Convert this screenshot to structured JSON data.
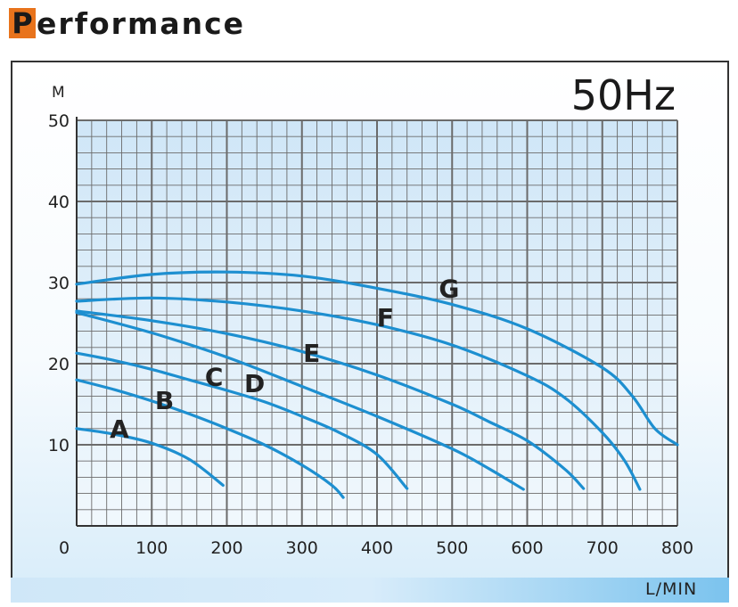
{
  "page": {
    "heading_initial": "P",
    "heading_rest": "erformance",
    "frequency": "50Hz"
  },
  "chart_data": {
    "type": "line",
    "title": "",
    "xlabel": "L/MIN",
    "ylabel": "M",
    "xlim": [
      0,
      800
    ],
    "ylim": [
      0,
      50
    ],
    "x_ticks": [
      0,
      100,
      200,
      300,
      400,
      500,
      600,
      700,
      800
    ],
    "y_ticks": [
      10,
      20,
      30,
      40,
      50
    ],
    "grid": true,
    "legend": "inline curve labels",
    "colors": {
      "curve": "#1d8fd0",
      "plot_top": "#cfe6f7",
      "plot_bottom": "#f1f8fd",
      "grid": "#6b6b6b",
      "accent": "#e8731c"
    },
    "series": [
      {
        "name": "A",
        "label_at": [
          57,
          12
        ],
        "points": [
          [
            0,
            12
          ],
          [
            50,
            11.3
          ],
          [
            100,
            10.2
          ],
          [
            150,
            8.2
          ],
          [
            195,
            5
          ]
        ]
      },
      {
        "name": "B",
        "label_at": [
          117,
          15.5
        ],
        "points": [
          [
            0,
            18
          ],
          [
            50,
            16.8
          ],
          [
            100,
            15.4
          ],
          [
            150,
            13.8
          ],
          [
            200,
            12
          ],
          [
            250,
            10
          ],
          [
            300,
            7.5
          ],
          [
            340,
            5
          ],
          [
            355,
            3.5
          ]
        ]
      },
      {
        "name": "C",
        "label_at": [
          183,
          18.4
        ],
        "points": [
          [
            0,
            21.3
          ],
          [
            50,
            20.4
          ],
          [
            100,
            19.3
          ],
          [
            150,
            18
          ],
          [
            200,
            16.7
          ],
          [
            250,
            15.3
          ],
          [
            300,
            13.5
          ],
          [
            350,
            11.5
          ],
          [
            400,
            8.8
          ],
          [
            440,
            4.6
          ]
        ]
      },
      {
        "name": "D",
        "label_at": [
          237,
          17.6
        ],
        "points": [
          [
            0,
            26.3
          ],
          [
            100,
            23.8
          ],
          [
            200,
            20.8
          ],
          [
            300,
            17.2
          ],
          [
            400,
            13.5
          ],
          [
            500,
            9.5
          ],
          [
            550,
            7
          ],
          [
            595,
            4.5
          ]
        ]
      },
      {
        "name": "E",
        "label_at": [
          313,
          21.3
        ],
        "points": [
          [
            0,
            26.5
          ],
          [
            100,
            25.3
          ],
          [
            200,
            23.7
          ],
          [
            300,
            21.5
          ],
          [
            400,
            18.6
          ],
          [
            500,
            15
          ],
          [
            550,
            12.8
          ],
          [
            600,
            10.5
          ],
          [
            650,
            7
          ],
          [
            675,
            4.6
          ]
        ]
      },
      {
        "name": "F",
        "label_at": [
          411,
          25.7
        ],
        "points": [
          [
            0,
            27.7
          ],
          [
            100,
            28.1
          ],
          [
            200,
            27.6
          ],
          [
            300,
            26.5
          ],
          [
            400,
            24.8
          ],
          [
            500,
            22.3
          ],
          [
            600,
            18.5
          ],
          [
            650,
            15.8
          ],
          [
            700,
            11.5
          ],
          [
            730,
            8
          ],
          [
            750,
            4.5
          ]
        ]
      },
      {
        "name": "G",
        "label_at": [
          496,
          29.3
        ],
        "points": [
          [
            0,
            29.8
          ],
          [
            100,
            31
          ],
          [
            200,
            31.3
          ],
          [
            300,
            30.8
          ],
          [
            400,
            29.3
          ],
          [
            500,
            27.3
          ],
          [
            600,
            24.3
          ],
          [
            700,
            19.5
          ],
          [
            740,
            16
          ],
          [
            770,
            12
          ],
          [
            800,
            10
          ]
        ]
      }
    ]
  }
}
